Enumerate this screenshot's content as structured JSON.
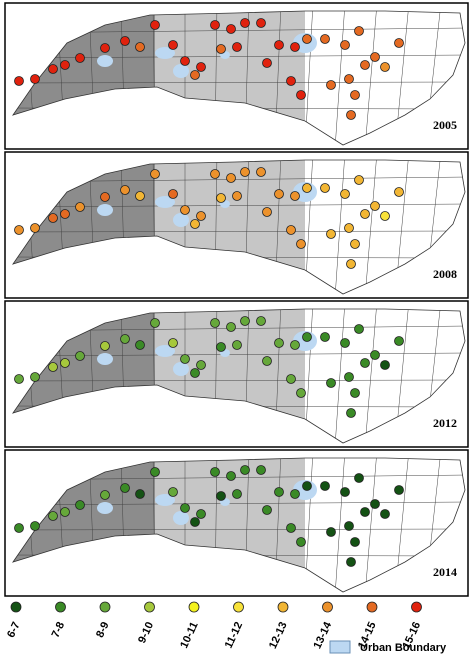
{
  "panels": [
    {
      "year": "2005"
    },
    {
      "year": "2008"
    },
    {
      "year": "2012"
    },
    {
      "year": "2014"
    }
  ],
  "legend": {
    "items": [
      {
        "label": "6-7",
        "color": "#145214"
      },
      {
        "label": "7-8",
        "color": "#3a8a26"
      },
      {
        "label": "8-9",
        "color": "#66a83a"
      },
      {
        "label": "9-10",
        "color": "#a6c83c"
      },
      {
        "label": "10-11",
        "color": "#f4f21e"
      },
      {
        "label": "11-12",
        "color": "#f8e23a"
      },
      {
        "label": "12-13",
        "color": "#f2b634"
      },
      {
        "label": "13-14",
        "color": "#ec922c"
      },
      {
        "label": "14-15",
        "color": "#e46a22"
      },
      {
        "label": "15-16",
        "color": "#e0220e"
      }
    ],
    "urban": {
      "label": "Urban Boundary",
      "color": "#bcd8f2"
    }
  }
}
